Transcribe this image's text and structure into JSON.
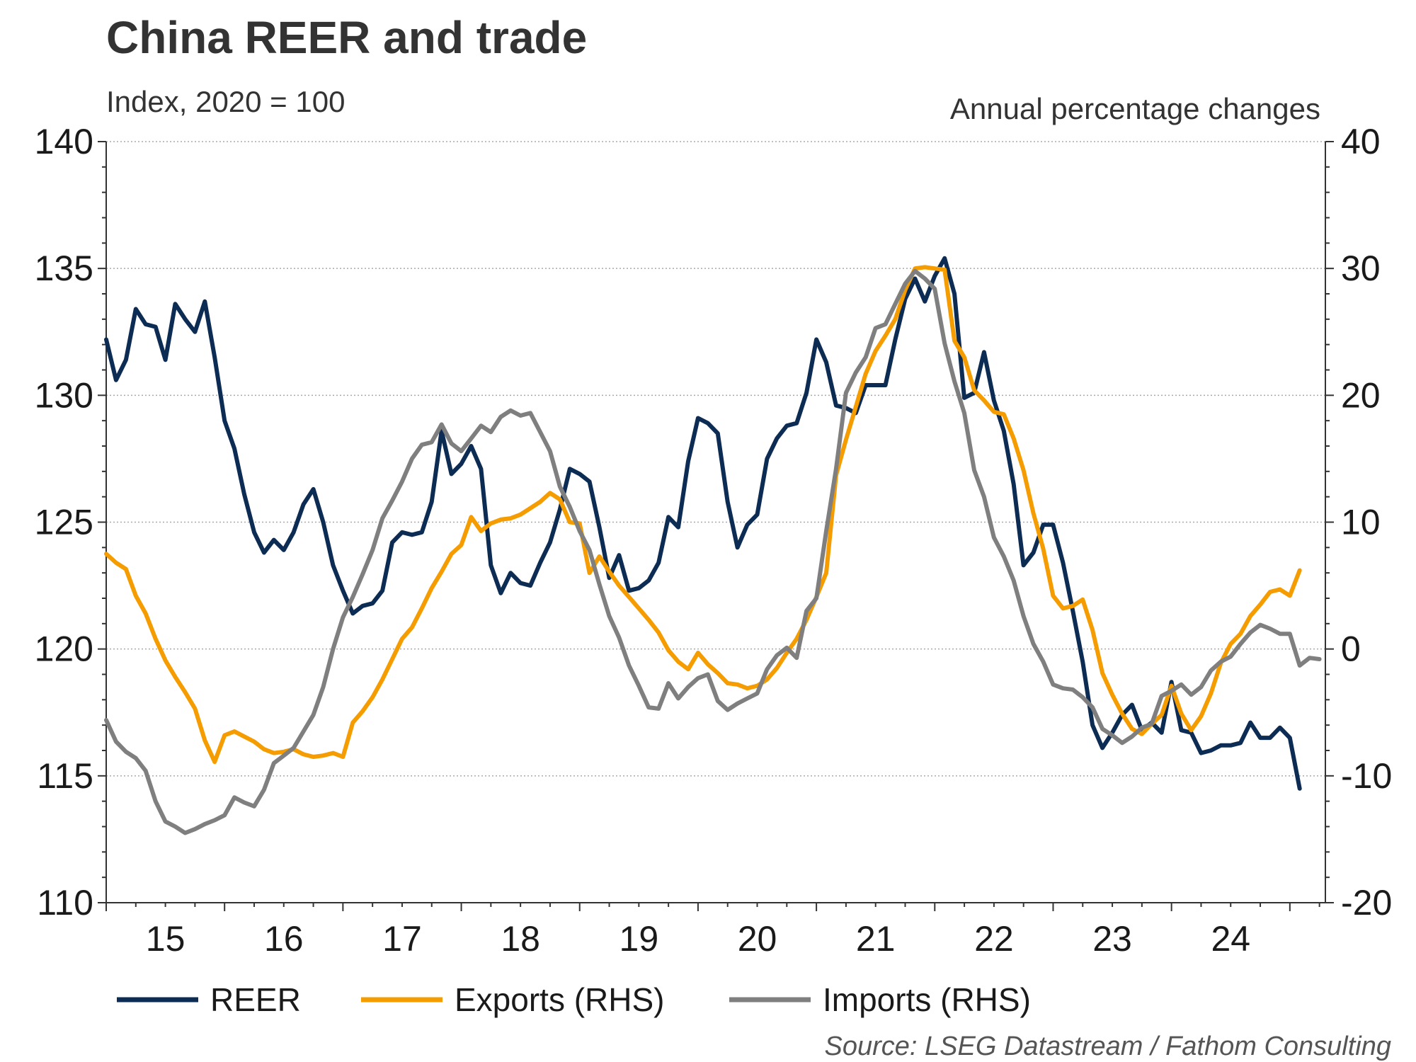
{
  "chart_data": {
    "type": "line",
    "title": "China REER and trade",
    "left_axis_label": "Index, 2020 = 100",
    "right_axis_label": "Annual percentage changes",
    "source": "Source: LSEG Datastream / Fathom Consulting",
    "x_start": 2015.0,
    "x_step": 0.08333,
    "x_range": [
      2015.0,
      2025.3
    ],
    "x_tick_labels": [
      "15",
      "16",
      "17",
      "18",
      "19",
      "20",
      "21",
      "22",
      "23",
      "24"
    ],
    "y_left": {
      "range": [
        110,
        140
      ],
      "ticks": [
        "110",
        "115",
        "120",
        "125",
        "130",
        "135",
        "140"
      ]
    },
    "y_right": {
      "range": [
        -20,
        40
      ],
      "ticks": [
        "-20",
        "-10",
        "0",
        "10",
        "20",
        "30",
        "40"
      ]
    },
    "series": [
      {
        "name": "REER",
        "axis": "left",
        "color": "#0d2c54",
        "values": [
          132.2,
          130.6,
          131.4,
          133.4,
          132.8,
          132.7,
          131.4,
          133.6,
          133.0,
          132.5,
          133.7,
          131.5,
          129.0,
          127.9,
          126.1,
          124.6,
          123.8,
          124.3,
          123.9,
          124.6,
          125.7,
          126.3,
          125.0,
          123.3,
          122.3,
          121.4,
          121.7,
          121.8,
          122.3,
          124.2,
          124.6,
          124.5,
          124.6,
          125.8,
          128.6,
          126.9,
          127.3,
          128.0,
          127.1,
          123.3,
          122.2,
          123.0,
          122.6,
          122.5,
          123.4,
          124.2,
          125.5,
          127.1,
          126.9,
          126.6,
          124.8,
          122.8,
          123.7,
          122.3,
          122.4,
          122.7,
          123.4,
          125.2,
          124.8,
          127.4,
          129.1,
          128.9,
          128.5,
          125.8,
          124.0,
          124.9,
          125.3,
          127.5,
          128.3,
          128.8,
          128.9,
          130.1,
          132.2,
          131.3,
          129.6,
          129.5,
          129.3,
          130.4,
          130.4,
          130.4,
          132.2,
          133.8,
          134.6,
          133.7,
          134.7,
          135.4,
          134.0,
          129.9,
          130.1,
          131.7,
          129.8,
          128.6,
          126.5,
          123.3,
          123.8,
          124.9,
          124.9,
          123.4,
          121.5,
          119.5,
          117.0,
          116.1,
          116.7,
          117.4,
          117.8,
          116.8,
          117.1,
          116.7,
          118.7,
          116.8,
          116.7,
          115.9,
          116.0,
          116.2,
          116.2,
          116.3,
          117.1,
          116.5,
          116.5,
          116.9,
          116.5,
          114.5
        ]
      },
      {
        "name": "Exports (RHS)",
        "axis": "right",
        "color": "#f59c00",
        "values": [
          7.5,
          6.8,
          6.3,
          4.2,
          2.8,
          0.8,
          -0.9,
          -2.2,
          -3.4,
          -4.7,
          -7.2,
          -8.9,
          -6.8,
          -6.5,
          -6.9,
          -7.3,
          -7.9,
          -8.2,
          -8.1,
          -7.9,
          -8.3,
          -8.5,
          -8.4,
          -8.2,
          -8.5,
          -5.8,
          -4.9,
          -3.8,
          -2.4,
          -0.8,
          0.8,
          1.7,
          3.2,
          4.8,
          6.1,
          7.5,
          8.2,
          10.4,
          9.3,
          9.9,
          10.2,
          10.3,
          10.6,
          11.1,
          11.6,
          12.3,
          11.8,
          10.0,
          9.9,
          6.0,
          7.3,
          6.1,
          5.0,
          4.1,
          3.2,
          2.3,
          1.3,
          -0.1,
          -1.0,
          -1.6,
          -0.3,
          -1.2,
          -1.9,
          -2.7,
          -2.8,
          -3.1,
          -2.9,
          -2.4,
          -1.5,
          -0.3,
          0.8,
          2.3,
          4.1,
          6.0,
          13.7,
          16.5,
          19.1,
          21.7,
          23.5,
          24.7,
          26.0,
          28.3,
          30.0,
          30.1,
          30.0,
          29.9,
          24.3,
          23.0,
          20.4,
          19.6,
          18.7,
          18.5,
          16.6,
          14.1,
          10.7,
          7.9,
          4.2,
          3.2,
          3.4,
          3.9,
          1.5,
          -1.9,
          -3.6,
          -5.1,
          -6.3,
          -6.7,
          -5.9,
          -5.2,
          -2.9,
          -5.1,
          -6.4,
          -5.3,
          -3.5,
          -1.1,
          0.4,
          1.2,
          2.6,
          3.5,
          4.5,
          4.7,
          4.2,
          6.2
        ]
      },
      {
        "name": "Imports (RHS)",
        "axis": "right",
        "color": "#7f7f7f",
        "values": [
          -5.6,
          -7.3,
          -8.1,
          -8.6,
          -9.6,
          -12.0,
          -13.6,
          -14.0,
          -14.5,
          -14.2,
          -13.8,
          -13.5,
          -13.1,
          -11.7,
          -12.1,
          -12.4,
          -11.1,
          -9.0,
          -8.4,
          -7.8,
          -6.5,
          -5.2,
          -3.0,
          0.0,
          2.5,
          4.1,
          5.9,
          7.8,
          10.3,
          11.7,
          13.2,
          15.0,
          16.1,
          16.3,
          17.7,
          16.2,
          15.6,
          16.6,
          17.6,
          17.1,
          18.3,
          18.8,
          18.4,
          18.6,
          17.1,
          15.6,
          12.8,
          11.2,
          9.3,
          7.8,
          5.1,
          2.6,
          0.9,
          -1.3,
          -2.9,
          -4.6,
          -4.7,
          -2.7,
          -3.9,
          -3.0,
          -2.3,
          -2.0,
          -4.1,
          -4.8,
          -4.3,
          -3.9,
          -3.5,
          -1.6,
          -0.5,
          0.1,
          -0.7,
          3.0,
          4.0,
          9.3,
          14.2,
          20.2,
          21.8,
          23.0,
          25.3,
          25.6,
          27.2,
          28.8,
          29.8,
          29.2,
          28.4,
          24.1,
          21.1,
          18.6,
          14.1,
          12.0,
          8.8,
          7.3,
          5.4,
          2.6,
          0.4,
          -1.0,
          -2.8,
          -3.1,
          -3.2,
          -3.8,
          -4.6,
          -6.3,
          -6.8,
          -7.4,
          -6.9,
          -6.2,
          -5.9,
          -3.7,
          -3.3,
          -2.8,
          -3.6,
          -3.0,
          -1.7,
          -1.0,
          -0.6,
          0.4,
          1.3,
          1.9,
          1.6,
          1.2,
          1.2,
          -1.3,
          -0.7,
          -0.8
        ]
      }
    ]
  }
}
